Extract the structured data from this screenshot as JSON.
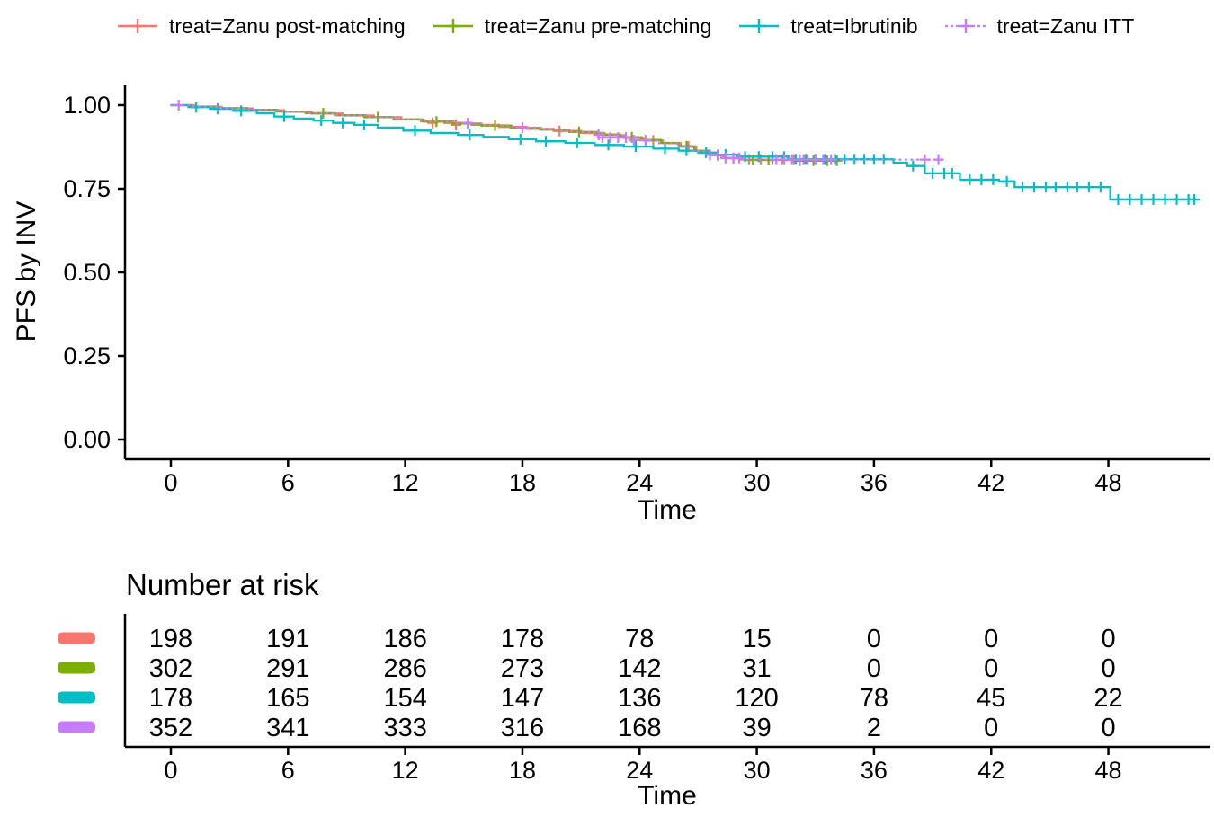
{
  "colors": {
    "zanu_post": "#F8766D",
    "zanu_pre": "#7CAE00",
    "ibrutinib": "#00BFC4",
    "zanu_itt": "#C77CFF",
    "axis": "#000000",
    "background": "#ffffff"
  },
  "legend": {
    "items": [
      {
        "label": "treat=Zanu post-matching",
        "color": "#F8766D",
        "linestyle": "solid"
      },
      {
        "label": "treat=Zanu pre-matching",
        "color": "#7CAE00",
        "linestyle": "solid"
      },
      {
        "label": "treat=Ibrutinib",
        "color": "#00BFC4",
        "linestyle": "solid"
      },
      {
        "label": "treat=Zanu ITT",
        "color": "#C77CFF",
        "linestyle": "dotted"
      }
    ]
  },
  "chart_data": {
    "type": "line",
    "subtype": "kaplan-meier-step",
    "title": "",
    "xlabel": "Time",
    "ylabel": "PFS by INV",
    "xlim": [
      -2.3,
      53.5
    ],
    "ylim": [
      0,
      1.05
    ],
    "xticks": [
      0,
      6,
      12,
      18,
      24,
      30,
      36,
      42,
      48
    ],
    "xtick_labels": [
      "0",
      "6",
      "12",
      "18",
      "24",
      "30",
      "36",
      "42",
      "48"
    ],
    "yticks": [
      0,
      0.25,
      0.5,
      0.75,
      1
    ],
    "ytick_labels": [
      "0.00",
      "0.25",
      "0.50",
      "0.75",
      "1.00"
    ],
    "grid": false,
    "legend_position": "top",
    "series": [
      {
        "name": "treat=Zanu post-matching",
        "color": "#F8766D",
        "linestyle": "solid",
        "points": [
          [
            0,
            1
          ],
          [
            1.2,
            0.995
          ],
          [
            2.6,
            0.99
          ],
          [
            4.2,
            0.985
          ],
          [
            5.8,
            0.98
          ],
          [
            7.2,
            0.975
          ],
          [
            8.8,
            0.969
          ],
          [
            10.4,
            0.964
          ],
          [
            11.8,
            0.958
          ],
          [
            12.8,
            0.952
          ],
          [
            14,
            0.947
          ],
          [
            15.4,
            0.941
          ],
          [
            16.8,
            0.935
          ],
          [
            18.2,
            0.929
          ],
          [
            19.6,
            0.923
          ],
          [
            21,
            0.917
          ],
          [
            22.2,
            0.91
          ],
          [
            23.2,
            0.902
          ],
          [
            24.2,
            0.894
          ],
          [
            25.2,
            0.886
          ],
          [
            26.1,
            0.876
          ],
          [
            26.9,
            0.863
          ],
          [
            27.6,
            0.85
          ],
          [
            28.3,
            0.841
          ],
          [
            29.2,
            0.837
          ],
          [
            33.6,
            0.837
          ]
        ],
        "censors": [
          [
            13.4,
            0.947
          ],
          [
            14.6,
            0.941
          ],
          [
            19.9,
            0.923
          ],
          [
            24.7,
            0.894
          ],
          [
            26.5,
            0.876
          ],
          [
            28.0,
            0.85
          ],
          [
            28.8,
            0.841
          ],
          [
            29.6,
            0.837
          ],
          [
            30.2,
            0.837
          ],
          [
            30.8,
            0.837
          ],
          [
            31.3,
            0.837
          ],
          [
            31.9,
            0.837
          ],
          [
            32.4,
            0.837
          ],
          [
            33.0,
            0.837
          ],
          [
            33.5,
            0.837
          ]
        ]
      },
      {
        "name": "treat=Zanu pre-matching",
        "color": "#7CAE00",
        "linestyle": "solid",
        "points": [
          [
            0,
            1
          ],
          [
            1,
            0.996
          ],
          [
            2.4,
            0.991
          ],
          [
            3.9,
            0.986
          ],
          [
            5.4,
            0.981
          ],
          [
            6.9,
            0.976
          ],
          [
            8.4,
            0.97
          ],
          [
            9.9,
            0.964
          ],
          [
            11.4,
            0.957
          ],
          [
            12.9,
            0.951
          ],
          [
            14.4,
            0.945
          ],
          [
            15.9,
            0.939
          ],
          [
            17.4,
            0.932
          ],
          [
            18.9,
            0.927
          ],
          [
            20.4,
            0.92
          ],
          [
            21.8,
            0.912
          ],
          [
            23,
            0.904
          ],
          [
            24.1,
            0.896
          ],
          [
            25.1,
            0.887
          ],
          [
            26,
            0.877
          ],
          [
            26.8,
            0.864
          ],
          [
            27.5,
            0.851
          ],
          [
            28.2,
            0.842
          ],
          [
            29.4,
            0.836
          ],
          [
            31.8,
            0.834
          ],
          [
            34.2,
            0.834
          ]
        ],
        "censors": [
          [
            7.8,
            0.976
          ],
          [
            10.6,
            0.964
          ],
          [
            13.6,
            0.951
          ],
          [
            16.6,
            0.939
          ],
          [
            20.9,
            0.92
          ],
          [
            23.6,
            0.904
          ],
          [
            26.4,
            0.877
          ],
          [
            29.8,
            0.836
          ],
          [
            30.6,
            0.836
          ],
          [
            32.2,
            0.834
          ],
          [
            32.9,
            0.834
          ],
          [
            33.6,
            0.834
          ],
          [
            34.1,
            0.834
          ]
        ]
      },
      {
        "name": "treat=Ibrutinib",
        "color": "#00BFC4",
        "linestyle": "solid",
        "points": [
          [
            0,
            1
          ],
          [
            0.9,
            0.994
          ],
          [
            2,
            0.989
          ],
          [
            3.2,
            0.983
          ],
          [
            4.4,
            0.976
          ],
          [
            5.3,
            0.966
          ],
          [
            6.3,
            0.96
          ],
          [
            7.3,
            0.954
          ],
          [
            8.3,
            0.947
          ],
          [
            9.4,
            0.941
          ],
          [
            10.6,
            0.933
          ],
          [
            11.9,
            0.924
          ],
          [
            13.3,
            0.917
          ],
          [
            14.7,
            0.911
          ],
          [
            16,
            0.905
          ],
          [
            17.3,
            0.898
          ],
          [
            18.7,
            0.892
          ],
          [
            20.2,
            0.887
          ],
          [
            21.7,
            0.881
          ],
          [
            23.2,
            0.876
          ],
          [
            24.7,
            0.87
          ],
          [
            26,
            0.864
          ],
          [
            27,
            0.858
          ],
          [
            28,
            0.852
          ],
          [
            29,
            0.846
          ],
          [
            31.6,
            0.838
          ],
          [
            37,
            0.828
          ],
          [
            37.7,
            0.818
          ],
          [
            38.6,
            0.796
          ],
          [
            40.4,
            0.777
          ],
          [
            42.4,
            0.772
          ],
          [
            43.2,
            0.755
          ],
          [
            48.1,
            0.718
          ],
          [
            52.5,
            0.718
          ]
        ],
        "censors": [
          [
            1.3,
            0.994
          ],
          [
            2.4,
            0.989
          ],
          [
            3.6,
            0.983
          ],
          [
            5.8,
            0.966
          ],
          [
            7.7,
            0.954
          ],
          [
            8.8,
            0.947
          ],
          [
            9.9,
            0.941
          ],
          [
            12.5,
            0.924
          ],
          [
            15.3,
            0.911
          ],
          [
            17.9,
            0.898
          ],
          [
            19.2,
            0.892
          ],
          [
            20.8,
            0.887
          ],
          [
            22.4,
            0.881
          ],
          [
            23.8,
            0.876
          ],
          [
            25.3,
            0.87
          ],
          [
            26.4,
            0.864
          ],
          [
            27.4,
            0.858
          ],
          [
            28.4,
            0.852
          ],
          [
            29.4,
            0.846
          ],
          [
            30.1,
            0.846
          ],
          [
            30.8,
            0.846
          ],
          [
            31.4,
            0.846
          ],
          [
            32.0,
            0.838
          ],
          [
            32.5,
            0.838
          ],
          [
            33.0,
            0.838
          ],
          [
            33.5,
            0.838
          ],
          [
            34.0,
            0.838
          ],
          [
            34.5,
            0.838
          ],
          [
            35.0,
            0.838
          ],
          [
            35.5,
            0.838
          ],
          [
            36.0,
            0.838
          ],
          [
            36.5,
            0.838
          ],
          [
            38.0,
            0.818
          ],
          [
            39.0,
            0.796
          ],
          [
            39.6,
            0.796
          ],
          [
            40.0,
            0.796
          ],
          [
            40.9,
            0.777
          ],
          [
            41.5,
            0.777
          ],
          [
            42.1,
            0.777
          ],
          [
            42.8,
            0.772
          ],
          [
            43.6,
            0.755
          ],
          [
            44.2,
            0.755
          ],
          [
            44.8,
            0.755
          ],
          [
            45.3,
            0.755
          ],
          [
            45.9,
            0.755
          ],
          [
            46.4,
            0.755
          ],
          [
            47.0,
            0.755
          ],
          [
            47.6,
            0.755
          ],
          [
            48.5,
            0.718
          ],
          [
            49.1,
            0.718
          ],
          [
            49.7,
            0.718
          ],
          [
            50.3,
            0.718
          ],
          [
            50.9,
            0.718
          ],
          [
            51.5,
            0.718
          ],
          [
            52.1,
            0.718
          ],
          [
            52.4,
            0.718
          ]
        ]
      },
      {
        "name": "treat=Zanu ITT",
        "color": "#C77CFF",
        "linestyle": "dotted",
        "points": [
          [
            0,
            1
          ],
          [
            1.1,
            0.996
          ],
          [
            2.5,
            0.991
          ],
          [
            4,
            0.986
          ],
          [
            5.5,
            0.981
          ],
          [
            7,
            0.976
          ],
          [
            8.5,
            0.97
          ],
          [
            10,
            0.964
          ],
          [
            11.5,
            0.958
          ],
          [
            13,
            0.952
          ],
          [
            14.5,
            0.946
          ],
          [
            16,
            0.94
          ],
          [
            17.5,
            0.933
          ],
          [
            19,
            0.927
          ],
          [
            20.5,
            0.92
          ],
          [
            21.8,
            0.911
          ],
          [
            22.9,
            0.903
          ],
          [
            24,
            0.895
          ],
          [
            25,
            0.886
          ],
          [
            25.9,
            0.876
          ],
          [
            26.7,
            0.863
          ],
          [
            27.4,
            0.851
          ],
          [
            28.2,
            0.842
          ],
          [
            29.3,
            0.837
          ],
          [
            39.5,
            0.837
          ]
        ],
        "censors": [
          [
            0.4,
            1.0
          ],
          [
            15.2,
            0.946
          ],
          [
            18.0,
            0.933
          ],
          [
            21.9,
            0.911
          ],
          [
            22.1,
            0.903
          ],
          [
            22.5,
            0.903
          ],
          [
            22.9,
            0.903
          ],
          [
            23.3,
            0.903
          ],
          [
            23.7,
            0.895
          ],
          [
            24.3,
            0.895
          ],
          [
            27.6,
            0.851
          ],
          [
            28.0,
            0.851
          ],
          [
            28.4,
            0.842
          ],
          [
            28.8,
            0.842
          ],
          [
            29.1,
            0.842
          ],
          [
            31.0,
            0.837
          ],
          [
            31.4,
            0.837
          ],
          [
            31.8,
            0.837
          ],
          [
            32.2,
            0.837
          ],
          [
            32.6,
            0.837
          ],
          [
            33.0,
            0.837
          ],
          [
            33.4,
            0.837
          ],
          [
            33.8,
            0.837
          ],
          [
            38.6,
            0.837
          ],
          [
            39.3,
            0.837
          ]
        ]
      }
    ]
  },
  "risk_table": {
    "title": "Number at risk",
    "xlabel": "Time",
    "xticks": [
      0,
      6,
      12,
      18,
      24,
      30,
      36,
      42,
      48
    ],
    "xtick_labels": [
      "0",
      "6",
      "12",
      "18",
      "24",
      "30",
      "36",
      "42",
      "48"
    ],
    "rows": [
      {
        "series": "treat=Zanu post-matching",
        "color": "#F8766D",
        "counts": [
          "198",
          "191",
          "186",
          "178",
          "78",
          "15",
          "0",
          "0",
          "0"
        ]
      },
      {
        "series": "treat=Zanu pre-matching",
        "color": "#7CAE00",
        "counts": [
          "302",
          "291",
          "286",
          "273",
          "142",
          "31",
          "0",
          "0",
          "0"
        ]
      },
      {
        "series": "treat=Ibrutinib",
        "color": "#00BFC4",
        "counts": [
          "178",
          "165",
          "154",
          "147",
          "136",
          "120",
          "78",
          "45",
          "22"
        ]
      },
      {
        "series": "treat=Zanu ITT",
        "color": "#C77CFF",
        "counts": [
          "352",
          "341",
          "333",
          "316",
          "168",
          "39",
          "2",
          "0",
          "0"
        ]
      }
    ]
  }
}
